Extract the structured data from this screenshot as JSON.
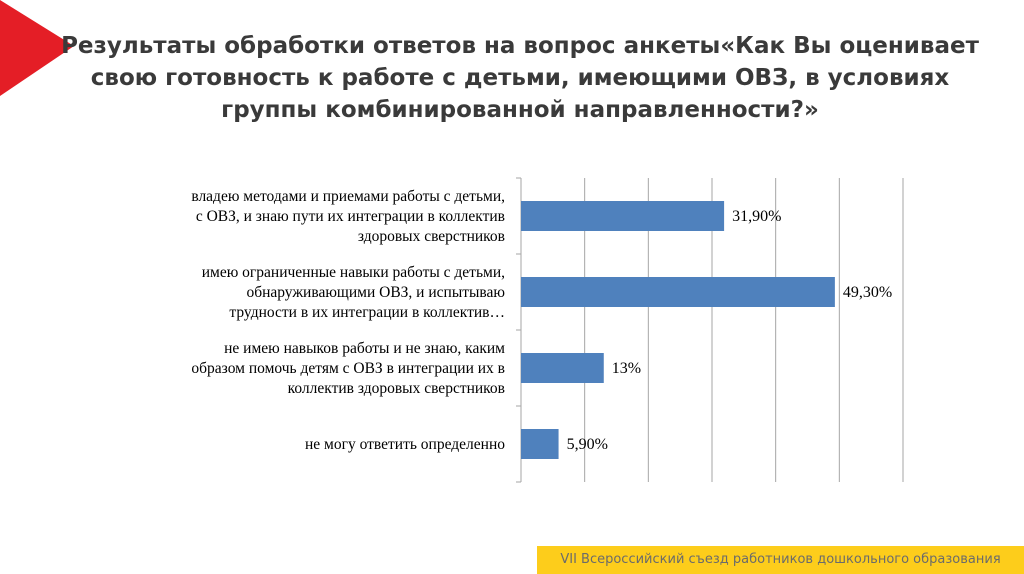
{
  "title": "Результаты обработки ответов на вопрос анкеты«Как Вы оценивает свою готовность к работе с детьми, имеющими ОВЗ, в условиях группы комбинированной направленности?»",
  "footer": "VII Всероссийский съезд работников дошкольного образования",
  "colors": {
    "bar": "#4f81bd",
    "accent": "#e41e26",
    "footer": "#fdcd1b"
  },
  "chart_data": {
    "type": "bar",
    "orientation": "horizontal",
    "title": "Результаты обработки ответов на вопрос анкеты«Как Вы оценивает свою готовность к работе с детьми, имеющими ОВЗ, в условиях группы комбинированной направленности?»",
    "categories": [
      [
        "владею методами и приемами работы с детьми,",
        "с ОВЗ, и знаю пути их интеграции в коллектив",
        "здоровых сверстников"
      ],
      [
        "имею ограниченные навыки работы с детьми,",
        "обнаруживающими ОВЗ, и испытываю",
        "трудности в их интеграции в коллектив…"
      ],
      [
        "не имею навыков работы и не знаю, каким",
        "образом помочь детям с ОВЗ в интеграции их в",
        "коллектив здоровых сверстников"
      ],
      [
        "не могу ответить определенно"
      ]
    ],
    "values": [
      31.9,
      49.3,
      13,
      5.9
    ],
    "data_labels": [
      "31,90%",
      "49,30%",
      "13%",
      "5,90%"
    ],
    "xlim": [
      0,
      60
    ],
    "grid_step": 10,
    "grid": true,
    "xlabel": "",
    "ylabel": ""
  }
}
